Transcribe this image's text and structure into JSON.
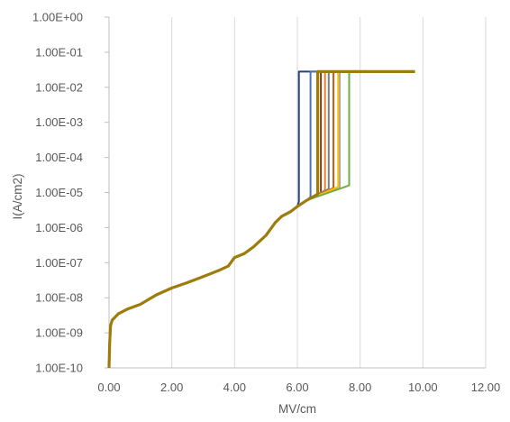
{
  "chart_data": {
    "type": "line",
    "title": "",
    "xlabel": "MV/cm",
    "ylabel": "I(A/cm2)",
    "x_ticks": [
      "0.00",
      "2.00",
      "4.00",
      "6.00",
      "8.00",
      "10.00",
      "12.00"
    ],
    "y_ticks": [
      "1.00E-10",
      "1.00E-09",
      "1.00E-08",
      "1.00E-07",
      "1.00E-06",
      "1.00E-05",
      "1.00E-04",
      "1.00E-03",
      "1.00E-02",
      "1.00E-01",
      "1.00E+00"
    ],
    "xlim": [
      0,
      12
    ],
    "ylim": [
      1e-10,
      1
    ],
    "y_scale": "log",
    "grid": "vertical",
    "legend": "none",
    "common_curve": [
      [
        0.0,
        1e-10
      ],
      [
        0.02,
        5e-10
      ],
      [
        0.05,
        1.6e-09
      ],
      [
        0.1,
        2.3e-09
      ],
      [
        0.3,
        3.5e-09
      ],
      [
        0.6,
        4.8e-09
      ],
      [
        1.0,
        6.5e-09
      ],
      [
        1.5,
        1.2e-08
      ],
      [
        2.0,
        1.9e-08
      ],
      [
        2.5,
        2.7e-08
      ],
      [
        3.0,
        4e-08
      ],
      [
        3.5,
        6e-08
      ],
      [
        3.8,
        8e-08
      ],
      [
        4.0,
        1.4e-07
      ],
      [
        4.3,
        1.8e-07
      ],
      [
        4.6,
        2.8e-07
      ],
      [
        5.0,
        6e-07
      ],
      [
        5.3,
        1.4e-06
      ],
      [
        5.5,
        2.1e-06
      ],
      [
        5.8,
        2.9e-06
      ],
      [
        6.0,
        4e-06
      ],
      [
        6.3,
        6e-06
      ]
    ],
    "series": [
      {
        "color": "#264478",
        "breakdown_x": 6.05,
        "pre_current": 5.5e-06,
        "compliance": 0.028,
        "end_x": 6.7
      },
      {
        "color": "#4472c4",
        "breakdown_x": 6.42,
        "pre_current": 7.5e-06,
        "compliance": 0.028,
        "end_x": 6.7
      },
      {
        "color": "#843c0c",
        "breakdown_x": 6.75,
        "pre_current": 1e-05,
        "compliance": 0.028,
        "end_x": 6.9
      },
      {
        "color": "#ed7d31",
        "breakdown_x": 6.88,
        "pre_current": 1.15e-05,
        "compliance": 0.028,
        "end_x": 7.0
      },
      {
        "color": "#7f7f7f",
        "breakdown_x": 7.0,
        "pre_current": 1.25e-05,
        "compliance": 0.028,
        "end_x": 7.1
      },
      {
        "color": "#c55a11",
        "breakdown_x": 7.15,
        "pre_current": 1.35e-05,
        "compliance": 0.028,
        "end_x": 7.3
      },
      {
        "color": "#a5a5a5",
        "breakdown_x": 7.35,
        "pre_current": 1.45e-05,
        "compliance": 0.028,
        "end_x": 7.5
      },
      {
        "color": "#ffc000",
        "breakdown_x": 7.3,
        "pre_current": 1.45e-05,
        "compliance": 0.028,
        "end_x": 7.6
      },
      {
        "color": "#70ad47",
        "breakdown_x": 7.65,
        "pre_current": 1.6e-05,
        "compliance": 0.028,
        "end_x": 7.8
      },
      {
        "color": "#9e7c0c",
        "breakdown_x": 6.65,
        "pre_current": 9e-06,
        "compliance": 0.028,
        "end_x": 9.75
      }
    ]
  }
}
